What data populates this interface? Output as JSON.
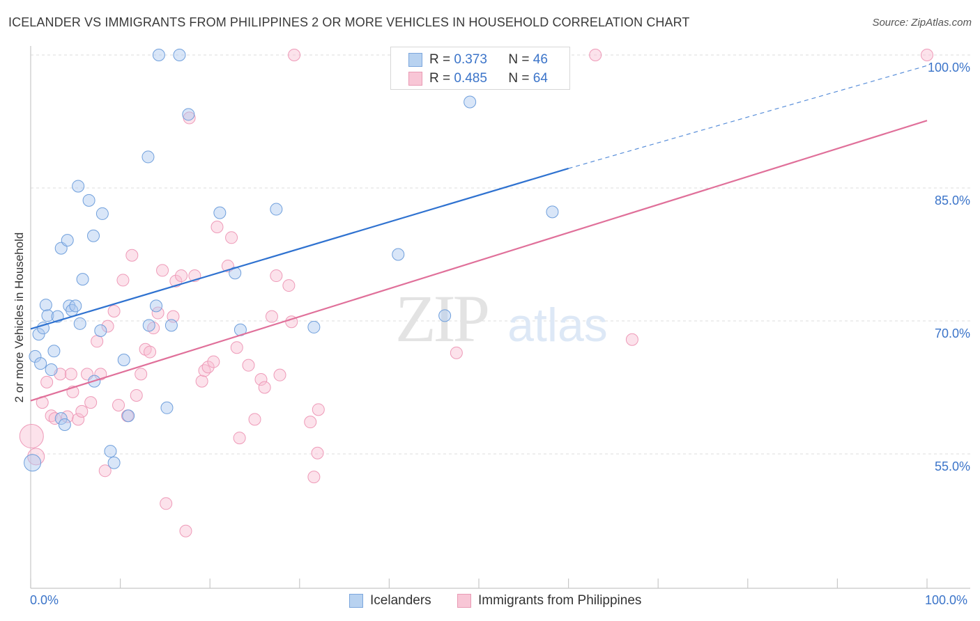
{
  "title": "ICELANDER VS IMMIGRANTS FROM PHILIPPINES 2 OR MORE VEHICLES IN HOUSEHOLD CORRELATION CHART",
  "source": "Source: ZipAtlas.com",
  "watermark": {
    "zip": "ZIP",
    "atlas": "atlas"
  },
  "colors": {
    "blue": "#5b93d8",
    "blue_line": "#2f72d0",
    "pink": "#ee8fb0",
    "pink_line": "#e0709a",
    "label": "#3b74c9"
  },
  "legend": {
    "rows": [
      {
        "r_label": "R = ",
        "r_value": "0.373",
        "n_label": "N = ",
        "n_value": "46"
      },
      {
        "r_label": "R = ",
        "r_value": "0.485",
        "n_label": "N = ",
        "n_value": "64"
      }
    ]
  },
  "bottom_legend": [
    "Icelanders",
    "Immigrants from Philippines"
  ],
  "chart_data": {
    "type": "scatter",
    "title": "ICELANDER VS IMMIGRANTS FROM PHILIPPINES 2 OR MORE VEHICLES IN HOUSEHOLD CORRELATION CHART",
    "xlabel": "",
    "ylabel": "2 or more Vehicles in Household",
    "xlim": [
      0,
      100
    ],
    "ylim": [
      41,
      100
    ],
    "x_tick_labels": [
      "0.0%",
      "100.0%"
    ],
    "y_ticks": [
      55,
      70,
      85,
      100
    ],
    "y_tick_labels": [
      "55.0%",
      "70.0%",
      "85.0%",
      "100.0%"
    ],
    "grid": true,
    "legend_position": "top-center",
    "series": [
      {
        "name": "Icelanders",
        "color": "#5b93d8",
        "trend": {
          "x": [
            0,
            60
          ],
          "y": [
            69.1,
            87.2
          ],
          "dashed_to": [
            100,
            98.8
          ]
        },
        "points": [
          [
            0.2,
            54.0
          ],
          [
            0.5,
            66.0
          ],
          [
            0.9,
            68.5
          ],
          [
            1.1,
            65.2
          ],
          [
            1.4,
            69.2
          ],
          [
            1.7,
            71.8
          ],
          [
            1.9,
            70.6
          ],
          [
            2.3,
            64.5
          ],
          [
            2.6,
            66.6
          ],
          [
            3.0,
            70.5
          ],
          [
            3.4,
            59.0
          ],
          [
            3.4,
            78.2
          ],
          [
            3.8,
            58.3
          ],
          [
            4.1,
            79.1
          ],
          [
            4.3,
            71.7
          ],
          [
            4.6,
            71.2
          ],
          [
            5.0,
            71.7
          ],
          [
            5.3,
            85.2
          ],
          [
            5.5,
            69.7
          ],
          [
            5.8,
            74.7
          ],
          [
            6.5,
            83.6
          ],
          [
            7.1,
            63.2
          ],
          [
            7.0,
            79.6
          ],
          [
            7.8,
            68.9
          ],
          [
            8.0,
            82.1
          ],
          [
            8.9,
            55.3
          ],
          [
            9.3,
            54.0
          ],
          [
            10.4,
            65.6
          ],
          [
            10.9,
            59.3
          ],
          [
            13.1,
            88.5
          ],
          [
            13.2,
            69.5
          ],
          [
            14.0,
            71.7
          ],
          [
            14.3,
            100.0
          ],
          [
            15.2,
            60.2
          ],
          [
            15.7,
            69.5
          ],
          [
            16.6,
            100.0
          ],
          [
            17.6,
            93.3
          ],
          [
            21.1,
            82.2
          ],
          [
            22.8,
            75.4
          ],
          [
            23.4,
            69.0
          ],
          [
            27.4,
            82.6
          ],
          [
            31.6,
            69.3
          ],
          [
            41.0,
            77.5
          ],
          [
            46.2,
            70.6
          ],
          [
            49.0,
            94.7
          ],
          [
            58.2,
            82.3
          ]
        ]
      },
      {
        "name": "Immigrants from Philippines",
        "color": "#ee8fb0",
        "trend": {
          "x": [
            0,
            100
          ],
          "y": [
            61.0,
            92.6
          ]
        },
        "points": [
          [
            0.1,
            57.0
          ],
          [
            0.6,
            54.7
          ],
          [
            1.3,
            60.8
          ],
          [
            1.8,
            63.1
          ],
          [
            2.3,
            59.3
          ],
          [
            2.7,
            59.0
          ],
          [
            3.3,
            64.0
          ],
          [
            4.1,
            59.2
          ],
          [
            4.5,
            64.0
          ],
          [
            4.7,
            62.0
          ],
          [
            5.3,
            58.9
          ],
          [
            5.7,
            59.8
          ],
          [
            6.3,
            64.0
          ],
          [
            6.7,
            60.8
          ],
          [
            7.4,
            67.7
          ],
          [
            7.8,
            64.0
          ],
          [
            8.3,
            53.1
          ],
          [
            8.6,
            69.4
          ],
          [
            9.3,
            71.1
          ],
          [
            9.8,
            60.5
          ],
          [
            10.3,
            74.6
          ],
          [
            10.8,
            59.3
          ],
          [
            11.3,
            77.4
          ],
          [
            11.8,
            61.6
          ],
          [
            12.3,
            64.0
          ],
          [
            12.8,
            66.8
          ],
          [
            13.3,
            66.5
          ],
          [
            13.7,
            69.2
          ],
          [
            14.2,
            70.9
          ],
          [
            14.7,
            75.7
          ],
          [
            15.1,
            49.4
          ],
          [
            15.9,
            70.5
          ],
          [
            16.2,
            74.5
          ],
          [
            16.8,
            75.1
          ],
          [
            17.3,
            46.3
          ],
          [
            17.7,
            92.9
          ],
          [
            18.3,
            75.1
          ],
          [
            19.1,
            63.2
          ],
          [
            19.4,
            64.4
          ],
          [
            19.8,
            64.8
          ],
          [
            20.4,
            65.4
          ],
          [
            20.8,
            80.6
          ],
          [
            22.0,
            76.2
          ],
          [
            22.4,
            79.4
          ],
          [
            23.0,
            67.0
          ],
          [
            23.3,
            56.8
          ],
          [
            24.3,
            65.0
          ],
          [
            25.0,
            58.9
          ],
          [
            25.7,
            63.4
          ],
          [
            26.1,
            62.5
          ],
          [
            26.9,
            70.5
          ],
          [
            27.4,
            75.1
          ],
          [
            27.8,
            63.9
          ],
          [
            28.8,
            74.0
          ],
          [
            29.1,
            69.9
          ],
          [
            29.4,
            100.0
          ],
          [
            31.2,
            58.6
          ],
          [
            31.6,
            52.4
          ],
          [
            32.0,
            55.1
          ],
          [
            32.1,
            60.0
          ],
          [
            47.5,
            66.4
          ],
          [
            63.0,
            100.0
          ],
          [
            67.1,
            67.9
          ],
          [
            100.0,
            100.0
          ]
        ]
      }
    ]
  }
}
